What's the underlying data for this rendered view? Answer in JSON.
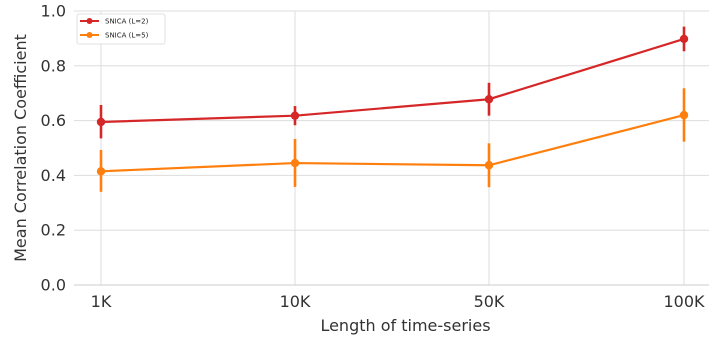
{
  "chart_data": {
    "type": "line",
    "title": "",
    "xlabel": "Length of time-series",
    "ylabel": "Mean Correlation Coefficient",
    "categories": [
      "1K",
      "10K",
      "50K",
      "100K"
    ],
    "ylim": [
      0.0,
      1.0
    ],
    "yticks": [
      "0.0",
      "0.2",
      "0.4",
      "0.6",
      "0.8",
      "1.0"
    ],
    "grid": true,
    "legend_position": "top-left",
    "series": [
      {
        "name": "SNICA (L=2)",
        "color": "#d62728",
        "values": [
          0.595,
          0.618,
          0.678,
          0.898
        ],
        "err_low": [
          0.535,
          0.583,
          0.618,
          0.853
        ],
        "err_high": [
          0.657,
          0.653,
          0.738,
          0.943
        ]
      },
      {
        "name": "SNICA (L=5)",
        "color": "#ff7f0e",
        "values": [
          0.415,
          0.445,
          0.437,
          0.62
        ],
        "err_low": [
          0.34,
          0.358,
          0.357,
          0.523
        ],
        "err_high": [
          0.493,
          0.533,
          0.517,
          0.718
        ]
      }
    ]
  }
}
